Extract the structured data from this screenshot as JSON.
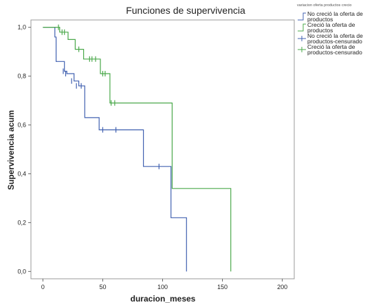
{
  "chart_data": {
    "type": "line",
    "title": "Funciones de supervivencia",
    "xlabel": "duracion_meses",
    "ylabel": "Supervivencia acum",
    "xlim": [
      -10,
      210
    ],
    "ylim": [
      -0.03,
      1.03
    ],
    "xticks": [
      0,
      50,
      100,
      150,
      200
    ],
    "xtick_labels": [
      "0",
      "50",
      "100",
      "150",
      "200"
    ],
    "yticks": [
      0.0,
      0.2,
      0.4,
      0.6,
      0.8,
      1.0
    ],
    "ytick_labels": [
      "0,0",
      "0,2",
      "0,4",
      "0,6",
      "0,8",
      "1,0"
    ],
    "grid": false,
    "legend": {
      "title": "variacion oferta productos crecio",
      "placement": "right"
    },
    "series": [
      {
        "name": "No creció la oferta de productos",
        "color": "#4060b0",
        "censor_legend": "No creció la oferta de productos-censurado",
        "steps": [
          [
            0,
            1.0
          ],
          [
            10,
            0.96
          ],
          [
            11,
            0.86
          ],
          [
            18,
            0.82
          ],
          [
            20,
            0.81
          ],
          [
            26,
            0.78
          ],
          [
            30,
            0.76
          ],
          [
            35,
            0.63
          ],
          [
            47,
            0.58
          ],
          [
            84,
            0.43
          ],
          [
            107,
            0.22
          ],
          [
            120,
            0.0
          ]
        ],
        "censored": [
          [
            17,
            0.82
          ],
          [
            19,
            0.81
          ],
          [
            24,
            0.78
          ],
          [
            28,
            0.76
          ],
          [
            32,
            0.76
          ],
          [
            50,
            0.58
          ],
          [
            61,
            0.58
          ],
          [
            97,
            0.43
          ]
        ]
      },
      {
        "name": "Creció la oferta de productos",
        "color": "#4aa84a",
        "censor_legend": "Creció la oferta de productos-censurado",
        "steps": [
          [
            0,
            1.0
          ],
          [
            14,
            0.98
          ],
          [
            21,
            0.95
          ],
          [
            27,
            0.91
          ],
          [
            34,
            0.87
          ],
          [
            48,
            0.81
          ],
          [
            56,
            0.69
          ],
          [
            108,
            0.34
          ],
          [
            157,
            0.0
          ]
        ],
        "censored": [
          [
            13,
            1.0
          ],
          [
            16,
            0.98
          ],
          [
            18,
            0.98
          ],
          [
            30,
            0.91
          ],
          [
            39,
            0.87
          ],
          [
            41,
            0.87
          ],
          [
            44,
            0.87
          ],
          [
            50,
            0.81
          ],
          [
            52,
            0.81
          ],
          [
            57,
            0.69
          ],
          [
            60,
            0.69
          ]
        ]
      }
    ]
  }
}
